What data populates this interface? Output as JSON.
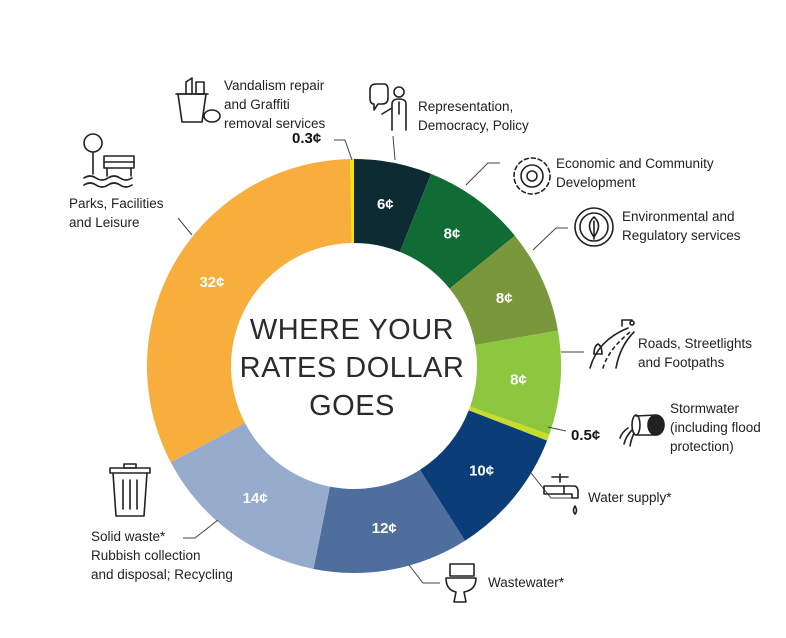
{
  "chart_data": {
    "type": "donut",
    "title": "WHERE YOUR RATES DOLLAR GOES",
    "unit": "¢",
    "segments": [
      {
        "name": "Representation, Democracy, Policy",
        "value": 6,
        "value_label": "6¢",
        "color": "#0d2b33",
        "icon": "speech-person-icon"
      },
      {
        "name": "Economic and Community Development",
        "value": 8,
        "value_label": "8¢",
        "color": "#116b34",
        "icon": "gear-icon"
      },
      {
        "name": "Environmental and Regulatory services",
        "value": 8,
        "value_label": "8¢",
        "color": "#78983b",
        "icon": "leaf-icon"
      },
      {
        "name": "Roads, Streetlights and Footpaths",
        "value": 8,
        "value_label": "8¢",
        "color": "#8dc63f",
        "icon": "road-icon"
      },
      {
        "name": "Stormwater (including flood protection)",
        "value": 0.5,
        "value_label": "0.5¢",
        "color": "#cbdb2a",
        "icon": "drain-pipe-icon"
      },
      {
        "name": "Water supply*",
        "value": 10,
        "value_label": "10¢",
        "color": "#0b3d79",
        "icon": "tap-icon"
      },
      {
        "name": "Wastewater*",
        "value": 12,
        "value_label": "12¢",
        "color": "#4e6f9e",
        "icon": "toilet-icon"
      },
      {
        "name": "Solid waste* Rubbish collection and disposal; Recycling",
        "value": 14,
        "value_label": "14¢",
        "color": "#97abcc",
        "icon": "bin-icon"
      },
      {
        "name": "Parks, Facilities and Leisure",
        "value": 32,
        "value_label": "32¢",
        "color": "#f7ae3d",
        "icon": "park-bench-icon"
      },
      {
        "name": "Vandalism repair and Graffiti removal services",
        "value": 0.3,
        "value_label": "0.3¢",
        "color": "#f2e500",
        "icon": "cleaning-bucket-icon"
      }
    ]
  },
  "labels": {
    "title_lines": [
      "WHERE YOUR",
      "RATES DOLLAR",
      "GOES"
    ],
    "representation": [
      "Representation,",
      "Democracy, Policy"
    ],
    "economic": [
      "Economic and Community",
      "Development"
    ],
    "environmental": [
      "Environmental and",
      "Regulatory services"
    ],
    "roads": [
      "Roads, Streetlights",
      "and Footpaths"
    ],
    "stormwater": [
      "Stormwater",
      "(including flood",
      "protection)"
    ],
    "water": [
      "Water supply*"
    ],
    "wastewater": [
      "Wastewater*"
    ],
    "solid": [
      "Solid waste*",
      "Rubbish collection",
      "and disposal; Recycling"
    ],
    "parks": [
      "Parks, Facilities",
      "and Leisure"
    ],
    "vandalism": [
      "Vandalism repair",
      "and Graffiti",
      "removal services"
    ],
    "stormwater_value": "0.5¢",
    "vandalism_value": "0.3¢"
  }
}
